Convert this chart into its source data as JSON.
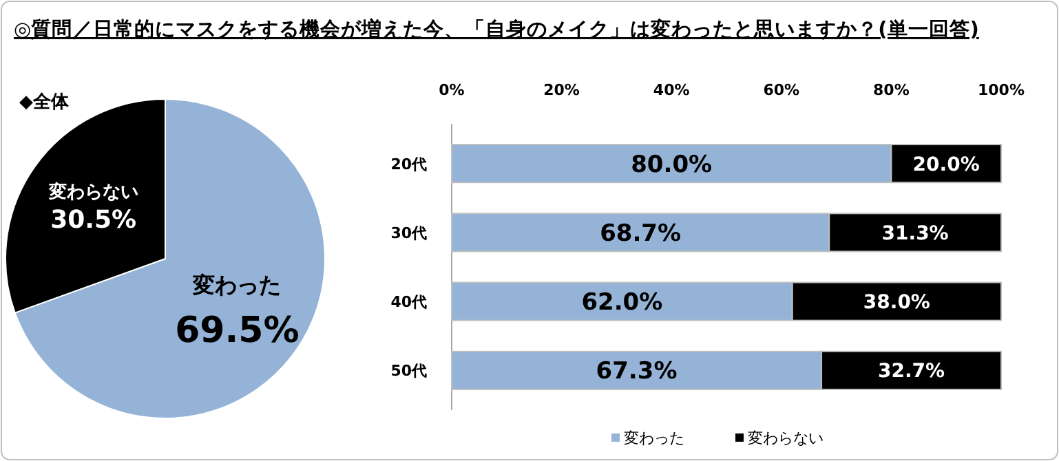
{
  "chart_data": [
    {
      "type": "pie",
      "title": "◎質問／日常的にマスクをする機会が増えた今、「自身のメイク」は変わったと思いますか？(単一回答)",
      "annotations": [
        "◆全体"
      ],
      "categories": [
        "変わった",
        "変わらない"
      ],
      "values": [
        69.5,
        30.5
      ],
      "colors": [
        "#95b3d7",
        "#000000"
      ],
      "value_labels": [
        "69.5%",
        "30.5%"
      ]
    },
    {
      "type": "bar",
      "orientation": "horizontal",
      "stacked": true,
      "categories": [
        "20代",
        "30代",
        "40代",
        "50代"
      ],
      "xlim": [
        0,
        100
      ],
      "xticks": [
        {
          "value": 0,
          "label": "0%"
        },
        {
          "value": 20,
          "label": "20%"
        },
        {
          "value": 40,
          "label": "40%"
        },
        {
          "value": 60,
          "label": "60%"
        },
        {
          "value": 80,
          "label": "80%"
        },
        {
          "value": 100,
          "label": "100%"
        }
      ],
      "legend": "bottom",
      "series": [
        {
          "name": "変わった",
          "color": "#95b3d7",
          "values": [
            80.0,
            68.7,
            62.0,
            67.3
          ],
          "value_labels": [
            "80.0%",
            "68.7%",
            "62.0%",
            "67.3%"
          ]
        },
        {
          "name": "変わらない",
          "color": "#000000",
          "values": [
            20.0,
            31.3,
            38.0,
            32.7
          ],
          "value_labels": [
            "20.0%",
            "31.3%",
            "38.0%",
            "32.7%"
          ]
        }
      ]
    }
  ]
}
